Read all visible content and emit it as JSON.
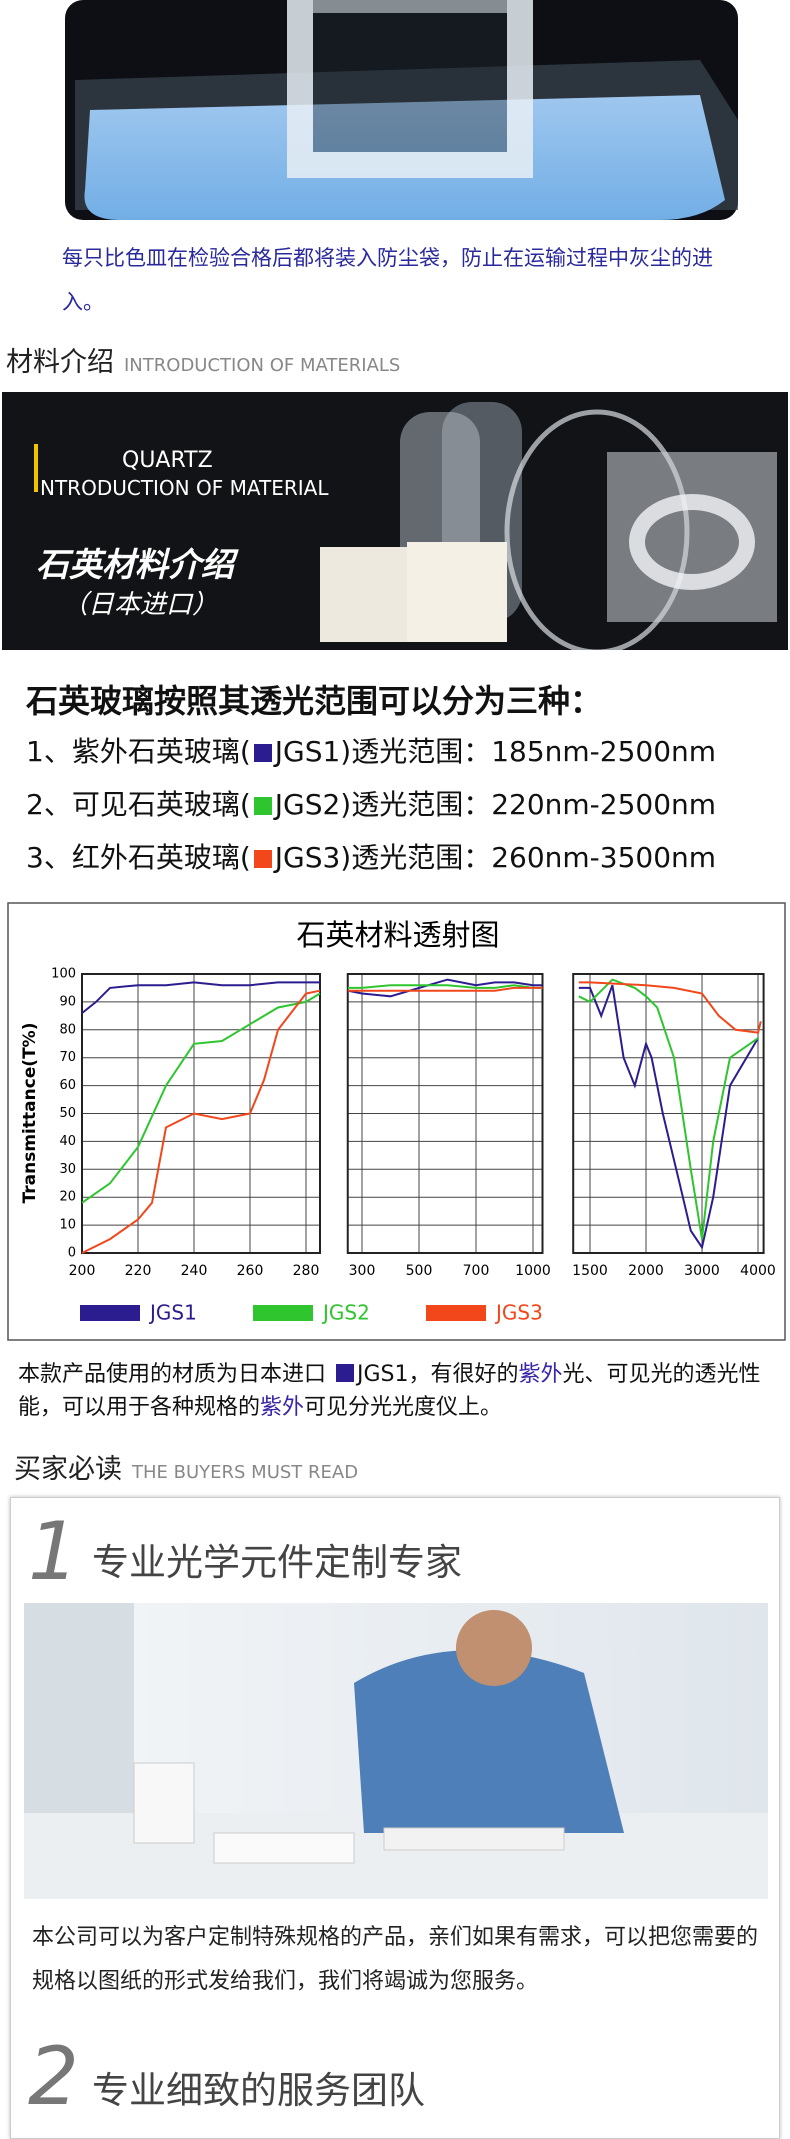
{
  "caption": "每只比色皿在检验合格后都将装入防尘袋，防止在运输过程中灰尘的进入。",
  "section_materials": {
    "title": "材料介绍",
    "subtitle": "INTRODUCTION OF MATERIALS"
  },
  "banner": {
    "line1": "QUARTZ",
    "line2": "NTRODUCTION OF MATERIAL",
    "line3": "石英材料介绍",
    "line4": "（日本进口）"
  },
  "classification": {
    "heading": "石英玻璃按照其透光范围可以分为三种：",
    "items": [
      [
        "1、紫外石英玻璃(",
        "JGS1)透光范围：185nm-2500nm"
      ],
      [
        "2、可见石英玻璃(",
        "JGS2)透光范围：220nm-2500nm"
      ],
      [
        "3、红外石英玻璃(",
        "JGS3)透光范围：260nm-3500nm"
      ]
    ]
  },
  "chart_data": {
    "type": "line",
    "title": "石英材料透射图",
    "ylabel": "Transmittance(T%)",
    "ylim": [
      0,
      100
    ],
    "yticks": [
      0,
      10,
      20,
      30,
      40,
      50,
      60,
      70,
      80,
      90,
      100
    ],
    "grid": true,
    "series": [
      {
        "name": "JGS1",
        "color": "#2b1d8f"
      },
      {
        "name": "JGS2",
        "color": "#2ec52e"
      },
      {
        "name": "JGS3",
        "color": "#f2471b"
      }
    ],
    "panels": [
      {
        "xlim": [
          200,
          285
        ],
        "xticks": [
          200,
          220,
          240,
          260,
          280
        ],
        "series": [
          {
            "x": [
              200,
              205,
              210,
              220,
              230,
              240,
              250,
              260,
              270,
              280,
              285
            ],
            "values": [
              86,
              90,
              95,
              96,
              96,
              97,
              96,
              96,
              97,
              97,
              97
            ]
          },
          {
            "x": [
              200,
              210,
              220,
              230,
              240,
              250,
              260,
              270,
              280,
              285
            ],
            "values": [
              18,
              25,
              38,
              60,
              75,
              76,
              82,
              88,
              90,
              93
            ]
          },
          {
            "x": [
              200,
              210,
              220,
              225,
              230,
              240,
              250,
              260,
              265,
              270,
              280,
              285
            ],
            "values": [
              0,
              5,
              12,
              18,
              45,
              50,
              48,
              50,
              62,
              80,
              93,
              94
            ]
          }
        ]
      },
      {
        "xlim": [
          250,
          1050
        ],
        "xticks": [
          300,
          500,
          700,
          1000
        ],
        "series": [
          {
            "x": [
              250,
              300,
              400,
              500,
              600,
              700,
              800,
              900,
              1000,
              1050
            ],
            "values": [
              94,
              93,
              92,
              95,
              98,
              96,
              97,
              97,
              96,
              96
            ]
          },
          {
            "x": [
              250,
              300,
              400,
              500,
              600,
              700,
              800,
              900,
              1000,
              1050
            ],
            "values": [
              95,
              95,
              96,
              96,
              96,
              95,
              95,
              96,
              95,
              95
            ]
          },
          {
            "x": [
              250,
              300,
              400,
              500,
              600,
              700,
              800,
              900,
              1000,
              1050
            ],
            "values": [
              94,
              94,
              94,
              94,
              94,
              94,
              94,
              95,
              95,
              95
            ]
          }
        ]
      },
      {
        "xlim": [
          1350,
          4100
        ],
        "xticks": [
          1500,
          2000,
          3000,
          4000
        ],
        "series": [
          {
            "x": [
              1400,
              1500,
              1600,
              1700,
              1800,
              1900,
              2000,
              2100,
              2300,
              2600,
              2800,
              3000,
              3200,
              3500,
              4000
            ],
            "values": [
              95,
              95,
              85,
              96,
              70,
              60,
              75,
              70,
              50,
              25,
              8,
              2,
              20,
              60,
              77
            ]
          },
          {
            "x": [
              1400,
              1500,
              1700,
              1900,
              2000,
              2200,
              2500,
              2800,
              3000,
              3200,
              3500,
              4000
            ],
            "values": [
              92,
              90,
              98,
              95,
              92,
              88,
              70,
              30,
              5,
              40,
              70,
              77
            ]
          },
          {
            "x": [
              1400,
              1500,
              2000,
              2500,
              3000,
              3300,
              3600,
              4000,
              4050
            ],
            "values": [
              97,
              97,
              96,
              95,
              93,
              85,
              80,
              79,
              83
            ]
          }
        ]
      }
    ]
  },
  "product_note": [
    "本款产品使用的材质为日本进口 ",
    "JGS1，有很好的",
    "紫外",
    "光、可见光的透光性能，可以用于各种规格的",
    "紫外",
    "可见分光光度仪上。"
  ],
  "section_buyers": {
    "title": "买家必读",
    "subtitle": "THE BUYERS MUST READ"
  },
  "points": [
    {
      "number": "1",
      "title": "专业光学元件定制专家",
      "text": "本公司可以为客户定制特殊规格的产品，亲们如果有需求，可以把您需要的规格以图纸的形式发给我们，我们将竭诚为您服务。"
    },
    {
      "number": "2",
      "title": "专业细致的服务团队"
    }
  ]
}
